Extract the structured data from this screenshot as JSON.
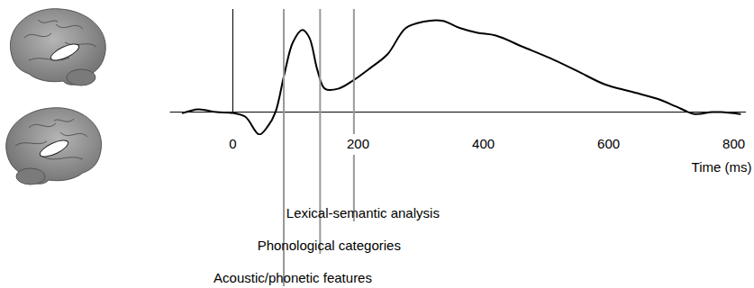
{
  "chart_data": {
    "type": "line",
    "xlabel": "Time (ms)",
    "x": [
      -80,
      -55,
      -26,
      0,
      20,
      42,
      56,
      68,
      82,
      96,
      111,
      122,
      135,
      147,
      168,
      190,
      219,
      247,
      276,
      305,
      334,
      363,
      391,
      420,
      463,
      506,
      550,
      593,
      636,
      679,
      708,
      737,
      765,
      780,
      810
    ],
    "values": [
      -1,
      3,
      0,
      -1,
      -5,
      -24,
      -15,
      0,
      40,
      75,
      88,
      80,
      45,
      25,
      25,
      33,
      47,
      62,
      90,
      97,
      98,
      90,
      85,
      82,
      70,
      58,
      44,
      30,
      22,
      14,
      6,
      -2,
      0,
      0,
      -2
    ],
    "color": "#000000",
    "xlim": [
      -100,
      820
    ],
    "ylim": [
      -25,
      110
    ],
    "xticks": [
      0,
      200,
      400,
      600,
      800
    ],
    "tick_labels": "x",
    "grid": false,
    "baseline": 0,
    "onset": 0,
    "annotations": [
      {
        "x": 82,
        "text": "Acoustic/phonetic features",
        "color": "#999999"
      },
      {
        "x": 140,
        "text": "Phonological categories",
        "color": "#999999"
      },
      {
        "x": 194,
        "text": "Lexical-semantic analysis",
        "color": "#999999"
      }
    ]
  }
}
